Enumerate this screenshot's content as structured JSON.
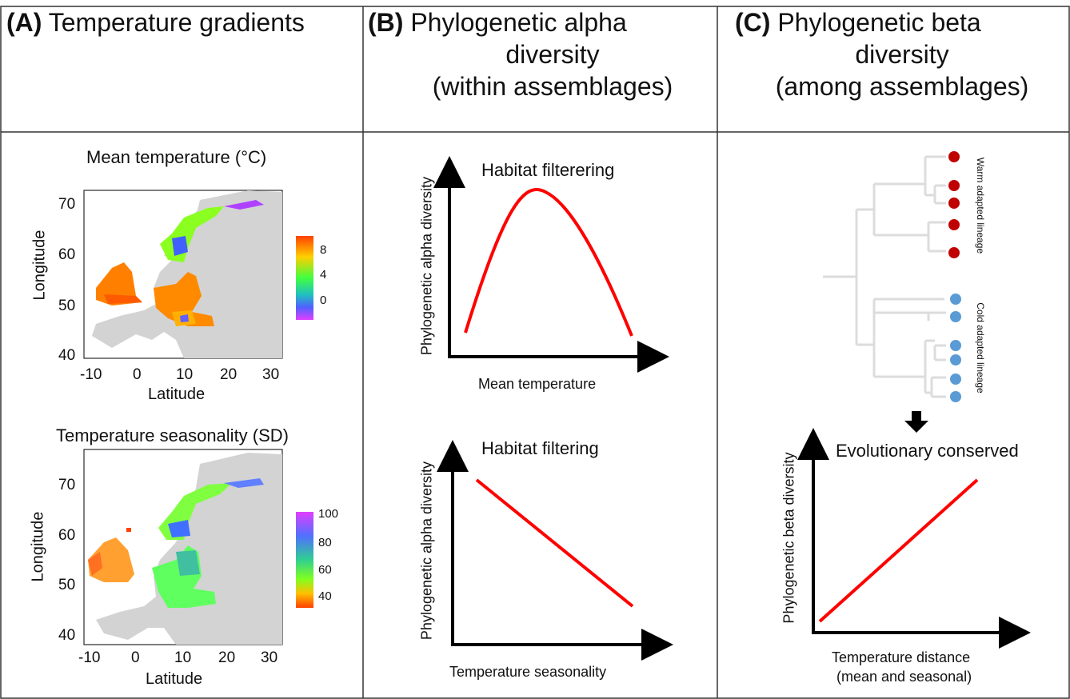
{
  "panelA": {
    "tag": "(A)",
    "title": "Temperature gradients",
    "map1": {
      "title": "Mean temperature (°C)",
      "xlabel": "Latitude",
      "ylabel": "Longitude",
      "xticks": [
        "-10",
        "0",
        "10",
        "20",
        "30"
      ],
      "yticks": [
        "70",
        "60",
        "50",
        "40"
      ],
      "legend_ticks": [
        "8",
        "4",
        "0"
      ]
    },
    "map2": {
      "title": "Temperature seasonality (SD)",
      "xlabel": "Latitude",
      "ylabel": "Longitude",
      "xticks": [
        "-10",
        "0",
        "10",
        "20",
        "30"
      ],
      "yticks": [
        "70",
        "60",
        "50",
        "40"
      ],
      "legend_ticks": [
        "100",
        "80",
        "60",
        "40"
      ]
    }
  },
  "panelB": {
    "tag": "(B)",
    "title_line1": "Phylogenetic alpha",
    "title_line2": "diversity",
    "title_line3": "(within assemblages)",
    "plot1": {
      "title": "Habitat filterering",
      "xlabel": "Mean temperature",
      "ylabel": "Phylogenetic alpha diversity"
    },
    "plot2": {
      "title": "Habitat filtering",
      "xlabel": "Temperature seasonality",
      "ylabel": "Phylogenetic alpha diversity"
    }
  },
  "panelC": {
    "tag": "(C)",
    "title_line1": "Phylogenetic beta",
    "title_line2": "diversity",
    "title_line3": "(among assemblages)",
    "tree": {
      "warm_label": "Warm adapted lineage",
      "cold_label": "Cold adapted lineage",
      "warm_color": "#c00000",
      "cold_color": "#5b9bd5"
    },
    "plot": {
      "title": "Evolutionary conserved",
      "xlabel_line1": "Temperature distance",
      "xlabel_line2": "(mean and seasonal)",
      "ylabel": "Phylogenetic beta diversity"
    }
  },
  "colors": {
    "curve": "#ff0000",
    "axis": "#000000",
    "land": "#d3d3d3"
  }
}
